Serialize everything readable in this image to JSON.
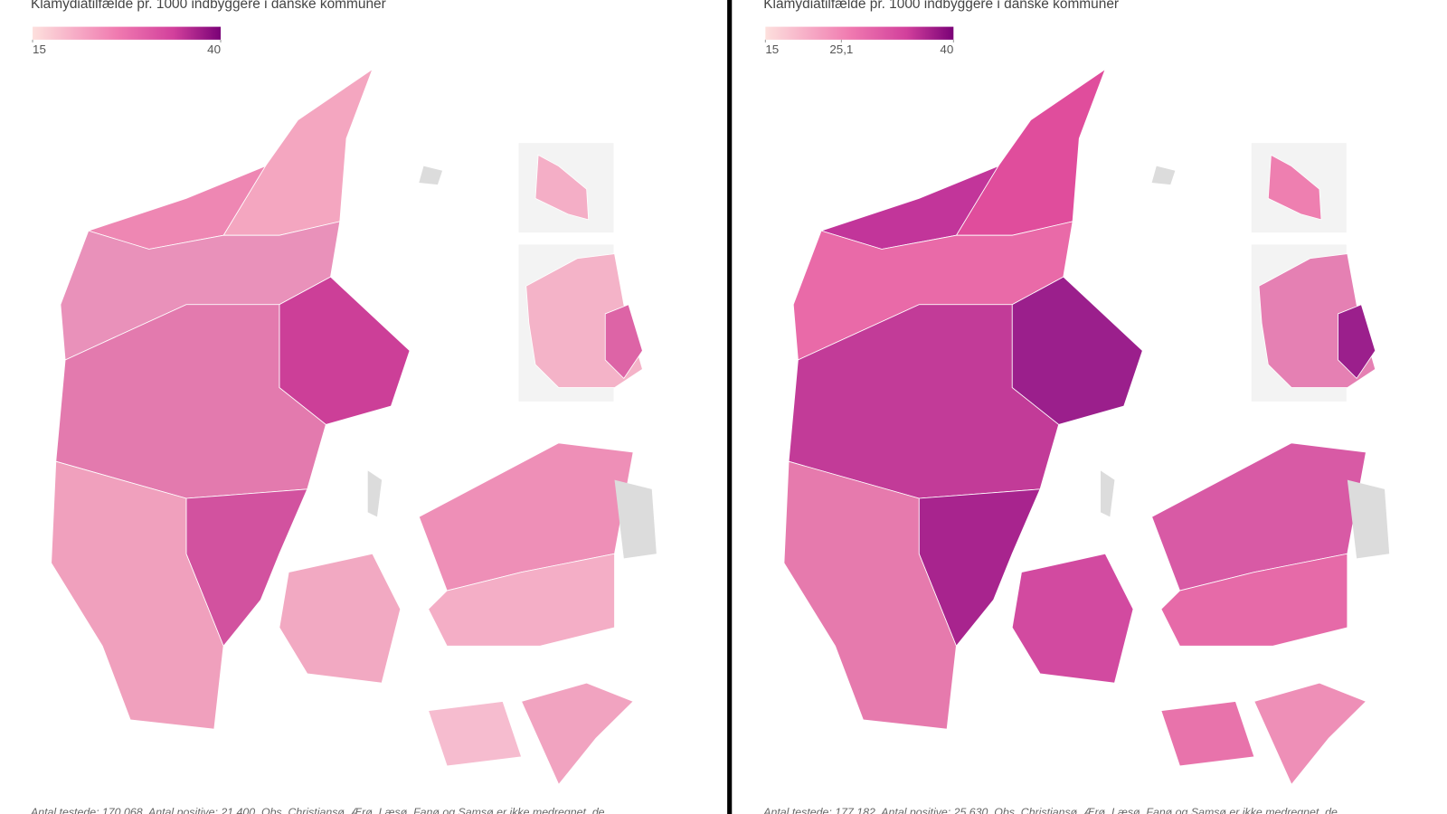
{
  "panels": [
    {
      "title": "Klamydiatilfælde pr. 1000 indbyggere i danske kommuner",
      "legend": {
        "min": 15,
        "max": 40,
        "ticks": [
          15,
          40
        ]
      },
      "footer": "Antal testede: 170.068. Antal positive: 21.400. Obs. Christiansø, Ærø, Læsø, Fanø og Samsø er ikke medregnet, de"
    },
    {
      "title": "Klamydiatilfælde pr. 1000 indbyggere i danske kommuner",
      "legend": {
        "min": 15,
        "max": 40,
        "ticks": [
          15,
          {
            "value": 25.1,
            "label": "25,1"
          },
          40
        ]
      },
      "footer": "Antal testede: 177.182. Antal positive: 25.630. Obs. Christiansø, Ærø, Læsø, Fanø og Samsø er ikke medregnet, de"
    }
  ]
}
